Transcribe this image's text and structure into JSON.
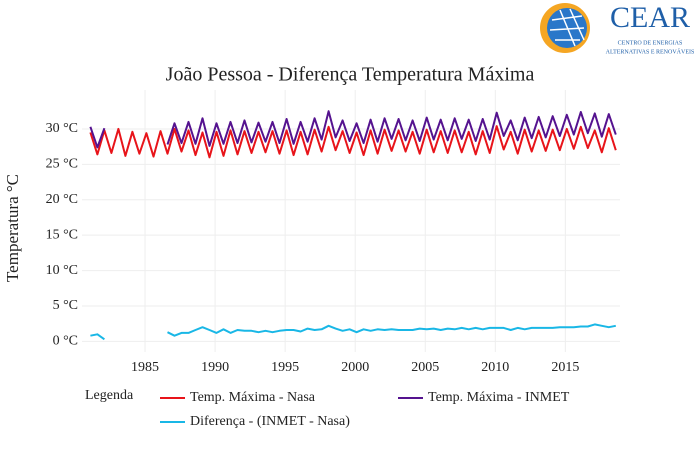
{
  "logo": {
    "name": "CEAR",
    "line1": "CENTRO DE ENERGIAS",
    "line2": "ALTERNATIVAS E RENOVÁVEIS"
  },
  "chart_data": {
    "type": "line",
    "title": "João Pessoa - Diferença Temperatura Máxima",
    "y_label": "Temperatura °C",
    "legend_title": "Legenda",
    "grid": true,
    "xlim": [
      1980.5,
      2018.9
    ],
    "xticks": [
      1985,
      1990,
      1995,
      2000,
      2005,
      2010,
      2015
    ],
    "ylim": [
      -1.5,
      35.5
    ],
    "yticks": [
      {
        "value": 0,
        "label": "0 °C"
      },
      {
        "value": 5,
        "label": "5 °C"
      },
      {
        "value": 10,
        "label": "10 °C"
      },
      {
        "value": 15,
        "label": "15 °C"
      },
      {
        "value": 20,
        "label": "20 °C"
      },
      {
        "value": 25,
        "label": "25 °C"
      },
      {
        "value": 30,
        "label": "30 °C"
      }
    ],
    "x": [
      1981.1,
      1981.6,
      1982.1,
      1982.6,
      1983.1,
      1983.6,
      1984.1,
      1984.6,
      1985.1,
      1985.6,
      1986.1,
      1986.6,
      1987.1,
      1987.6,
      1988.1,
      1988.6,
      1989.1,
      1989.6,
      1990.1,
      1990.6,
      1991.1,
      1991.6,
      1992.1,
      1992.6,
      1993.1,
      1993.6,
      1994.1,
      1994.6,
      1995.1,
      1995.6,
      1996.1,
      1996.6,
      1997.1,
      1997.6,
      1998.1,
      1998.6,
      1999.1,
      1999.6,
      2000.1,
      2000.6,
      2001.1,
      2001.6,
      2002.1,
      2002.6,
      2003.1,
      2003.6,
      2004.1,
      2004.6,
      2005.1,
      2005.6,
      2006.1,
      2006.6,
      2007.1,
      2007.6,
      2008.1,
      2008.6,
      2009.1,
      2009.6,
      2010.1,
      2010.6,
      2011.1,
      2011.6,
      2012.1,
      2012.6,
      2013.1,
      2013.6,
      2014.1,
      2014.6,
      2015.1,
      2015.6,
      2016.1,
      2016.6,
      2017.1,
      2017.6,
      2018.1,
      2018.6
    ],
    "series": [
      {
        "name": "Temp. Máxima - Nasa",
        "color": "#e8141a",
        "values": [
          29.5,
          26.4,
          29.8,
          26.6,
          30.0,
          26.2,
          29.6,
          26.5,
          29.4,
          26.1,
          29.7,
          26.5,
          30.0,
          26.8,
          29.8,
          26.3,
          29.5,
          26.0,
          29.6,
          26.2,
          29.8,
          26.4,
          29.7,
          26.6,
          29.6,
          26.7,
          29.7,
          26.5,
          29.8,
          26.3,
          29.6,
          26.4,
          29.9,
          26.8,
          30.3,
          27.0,
          29.7,
          26.6,
          29.5,
          26.3,
          29.8,
          26.5,
          29.9,
          26.9,
          29.8,
          26.8,
          29.6,
          26.5,
          29.9,
          26.7,
          29.7,
          26.6,
          29.8,
          26.7,
          29.6,
          26.4,
          29.7,
          26.6,
          30.4,
          27.1,
          29.6,
          26.5,
          29.9,
          26.8,
          29.8,
          26.9,
          29.9,
          27.0,
          30.0,
          27.2,
          30.3,
          27.3,
          29.8,
          26.7,
          30.1,
          27.0
        ]
      },
      {
        "name": "Temp. Máxima - INMET",
        "color": "#55138f",
        "values": [
          30.3,
          27.4,
          30.1,
          null,
          null,
          null,
          null,
          null,
          null,
          null,
          null,
          27.8,
          30.8,
          28.0,
          31.0,
          27.9,
          31.5,
          27.6,
          30.8,
          27.9,
          31.0,
          28.0,
          31.2,
          28.1,
          30.9,
          28.2,
          31.0,
          28.0,
          31.4,
          27.9,
          31.0,
          28.2,
          31.5,
          28.5,
          32.5,
          28.8,
          31.2,
          28.3,
          30.8,
          28.0,
          31.3,
          28.2,
          31.5,
          28.6,
          31.4,
          28.4,
          31.2,
          28.3,
          31.6,
          28.5,
          31.3,
          28.4,
          31.5,
          28.6,
          31.3,
          28.3,
          31.4,
          28.5,
          32.3,
          29.0,
          31.2,
          28.4,
          31.6,
          28.7,
          31.7,
          28.8,
          31.8,
          29.0,
          32.0,
          29.2,
          32.4,
          29.4,
          32.2,
          28.9,
          32.1,
          29.2
        ]
      },
      {
        "name": "Diferença - (INMET - Nasa)",
        "color": "#19b7e6",
        "values": [
          0.8,
          1.0,
          0.3,
          null,
          null,
          null,
          null,
          null,
          null,
          null,
          null,
          1.3,
          0.8,
          1.2,
          1.2,
          1.6,
          2.0,
          1.6,
          1.2,
          1.7,
          1.2,
          1.6,
          1.5,
          1.5,
          1.3,
          1.5,
          1.3,
          1.5,
          1.6,
          1.6,
          1.4,
          1.8,
          1.6,
          1.7,
          2.2,
          1.8,
          1.5,
          1.7,
          1.3,
          1.7,
          1.5,
          1.7,
          1.6,
          1.7,
          1.6,
          1.6,
          1.6,
          1.8,
          1.7,
          1.8,
          1.6,
          1.8,
          1.7,
          1.9,
          1.7,
          1.9,
          1.7,
          1.9,
          1.9,
          1.9,
          1.6,
          1.9,
          1.7,
          1.9,
          1.9,
          1.9,
          1.9,
          2.0,
          2.0,
          2.0,
          2.1,
          2.1,
          2.4,
          2.2,
          2.0,
          2.2
        ]
      }
    ]
  }
}
